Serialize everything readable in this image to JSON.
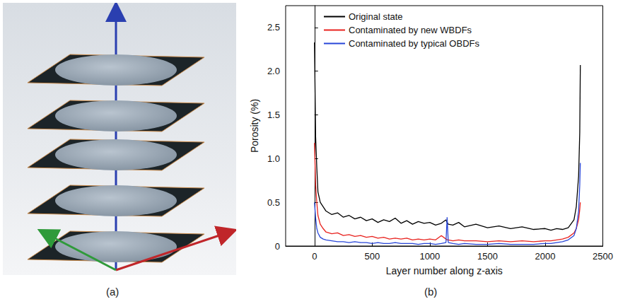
{
  "panel_labels": [
    "(a)",
    "(b)"
  ],
  "chart_data": {
    "type": "line",
    "x_label": "Layer number along z-axis",
    "y_label": "Porosity (%)",
    "xlim": [
      -250,
      2500
    ],
    "xticks": [
      0,
      500,
      1000,
      1500,
      2000,
      2500
    ],
    "ylim": [
      0,
      2.75
    ],
    "yticks": [
      0,
      0.5,
      {
        "value": 1,
        "label": "1.0"
      },
      1.5,
      {
        "value": 2,
        "label": "2.0"
      },
      2.5
    ],
    "grid": false,
    "legend": "top-left",
    "x": [
      0,
      10,
      20,
      30,
      50,
      75,
      100,
      150,
      200,
      250,
      300,
      350,
      400,
      450,
      500,
      550,
      600,
      650,
      700,
      750,
      800,
      850,
      900,
      950,
      1000,
      1050,
      1100,
      1140,
      1150,
      1160,
      1200,
      1250,
      1300,
      1400,
      1500,
      1600,
      1700,
      1800,
      1900,
      2000,
      2050,
      2100,
      2150,
      2200,
      2250,
      2270,
      2290,
      2300,
      2305
    ],
    "series": [
      {
        "name": "Original state",
        "color": "#000000",
        "values": [
          2.33,
          1.25,
          0.9,
          0.62,
          0.5,
          0.45,
          0.4,
          0.36,
          0.38,
          0.33,
          0.35,
          0.31,
          0.33,
          0.29,
          0.31,
          0.27,
          0.3,
          0.28,
          0.32,
          0.26,
          0.29,
          0.25,
          0.28,
          0.26,
          0.27,
          0.24,
          0.26,
          0.3,
          0.27,
          0.25,
          0.24,
          0.27,
          0.22,
          0.25,
          0.21,
          0.23,
          0.2,
          0.22,
          0.19,
          0.2,
          0.18,
          0.2,
          0.19,
          0.21,
          0.3,
          0.45,
          0.8,
          1.3,
          2.07
        ]
      },
      {
        "name": "Contaminated by new WBDFs",
        "color": "#e8221e",
        "values": [
          1.18,
          0.7,
          0.5,
          0.35,
          0.25,
          0.2,
          0.16,
          0.14,
          0.15,
          0.12,
          0.13,
          0.11,
          0.12,
          0.1,
          0.11,
          0.09,
          0.1,
          0.08,
          0.09,
          0.08,
          0.09,
          0.07,
          0.08,
          0.07,
          0.08,
          0.07,
          0.12,
          0.08,
          0.07,
          0.07,
          0.06,
          0.07,
          0.06,
          0.06,
          0.05,
          0.06,
          0.05,
          0.06,
          0.05,
          0.06,
          0.06,
          0.07,
          0.08,
          0.1,
          0.15,
          0.2,
          0.3,
          0.42,
          0.5
        ]
      },
      {
        "name": "Contaminated by typical OBDFs",
        "color": "#2846d8",
        "values": [
          0.5,
          0.32,
          0.2,
          0.15,
          0.1,
          0.08,
          0.07,
          0.06,
          0.05,
          0.05,
          0.04,
          0.05,
          0.04,
          0.04,
          0.03,
          0.04,
          0.03,
          0.03,
          0.04,
          0.03,
          0.03,
          0.03,
          0.02,
          0.03,
          0.03,
          0.02,
          0.03,
          0.04,
          0.33,
          0.04,
          0.03,
          0.02,
          0.03,
          0.02,
          0.02,
          0.03,
          0.02,
          0.02,
          0.02,
          0.03,
          0.03,
          0.04,
          0.05,
          0.07,
          0.12,
          0.2,
          0.4,
          0.7,
          0.95
        ]
      }
    ]
  }
}
